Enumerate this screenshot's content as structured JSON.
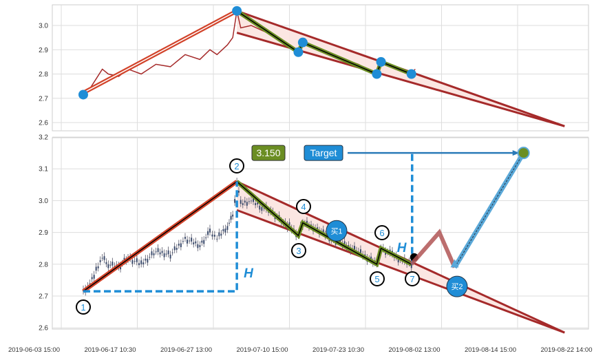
{
  "chart_data": [
    {
      "type": "line",
      "panel": "top",
      "ylim": [
        2.58,
        3.085
      ],
      "yticks": [
        "2.6",
        "2.7",
        "2.8",
        "2.9",
        "3.0"
      ],
      "grid": true,
      "price_color": "#a52a2a"
    },
    {
      "type": "candlestick",
      "panel": "bottom",
      "ylim": [
        2.57,
        3.2
      ],
      "yticks": [
        "2.6",
        "2.7",
        "2.8",
        "2.9",
        "3.0",
        "3.1",
        "3.2"
      ],
      "grid": true
    }
  ],
  "x_ticks": [
    "2019-06-03 15:00",
    "2019-06-17 10:30",
    "2019-06-27 13:00",
    "2019-07-10 15:00",
    "2019-07-23 10:30",
    "2019-08-02 13:00",
    "2019-08-14 15:00",
    "2019-08-22 14:00"
  ],
  "price_series": [
    [
      "2019-06-07 15:00",
      2.715
    ],
    [
      "2019-06-08 20:00",
      2.74
    ],
    [
      "2019-06-09 23:00",
      2.78
    ],
    [
      "2019-06-11 02:00",
      2.82
    ],
    [
      "2019-06-12 04:00",
      2.8
    ],
    [
      "2019-06-14 01:00",
      2.79
    ],
    [
      "2019-06-15 18:00",
      2.82
    ],
    [
      "2019-06-17 23:00",
      2.8
    ],
    [
      "2019-06-19 22:00",
      2.84
    ],
    [
      "2019-06-21 20:00",
      2.83
    ],
    [
      "2019-06-23 19:00",
      2.88
    ],
    [
      "2019-06-25 18:00",
      2.86
    ],
    [
      "2019-06-27 02:00",
      2.9
    ],
    [
      "2019-06-28 04:00",
      2.88
    ],
    [
      "2019-06-29 23:00",
      2.92
    ],
    [
      "2019-06-30 21:00",
      2.95
    ],
    [
      "2019-07-01 14:00",
      3.06
    ],
    [
      "2019-07-02 06:00",
      2.99
    ],
    [
      "2019-07-04 01:00",
      3.0
    ],
    [
      "2019-07-05 21:00",
      2.98
    ],
    [
      "2019-07-07 19:00",
      2.96
    ],
    [
      "2019-07-09 14:00",
      2.93
    ],
    [
      "2019-07-10 15:00",
      2.92
    ],
    [
      "2019-07-12 03:00",
      2.89
    ],
    [
      "2019-07-12 21:00",
      2.93
    ],
    [
      "2019-07-15 08:00",
      2.91
    ],
    [
      "2019-07-17 16:00",
      2.88
    ],
    [
      "2019-07-19 22:00",
      2.86
    ],
    [
      "2019-07-22 06:00",
      2.84
    ],
    [
      "2019-07-23 16:00",
      2.82
    ],
    [
      "2019-07-24 22:30",
      2.8
    ],
    [
      "2019-07-25 12:00",
      2.85
    ],
    [
      "2019-07-27 00:00",
      2.83
    ],
    [
      "2019-07-28 08:00",
      2.81
    ],
    [
      "2019-07-29 13:00",
      2.8
    ],
    [
      "2019-07-30 01:00",
      2.82
    ]
  ],
  "pivots": [
    {
      "label": "1",
      "date": "2019-06-07 15:00",
      "price": 2.715
    },
    {
      "label": "2",
      "date": "2019-07-01 14:00",
      "price": 3.06
    },
    {
      "label": "3",
      "date": "2019-07-12 03:00",
      "price": 2.89
    },
    {
      "label": "4",
      "date": "2019-07-12 21:00",
      "price": 2.93
    },
    {
      "label": "5",
      "date": "2019-07-24 22:30",
      "price": 2.8
    },
    {
      "label": "6",
      "date": "2019-07-25 12:00",
      "price": 2.85
    },
    {
      "label": "7",
      "date": "2019-07-29 13:00",
      "price": 2.8
    }
  ],
  "channel": {
    "upper": [
      [
        "2019-07-01 14:00",
        3.06
      ],
      [
        "2019-08-19 13:00",
        2.585
      ]
    ],
    "lower": [
      [
        "2019-07-01 14:00",
        2.97
      ],
      [
        "2019-08-19 13:00",
        2.585
      ]
    ],
    "fill": "#fbe3df",
    "line": "#a52a2a"
  },
  "projection": [
    [
      "2019-07-29 13:00",
      2.8
    ],
    [
      "2019-08-02 06:00",
      2.9
    ],
    [
      "2019-08-04 15:00",
      2.79
    ]
  ],
  "target": {
    "date": "2019-08-15 06:00",
    "price": 3.15,
    "label": "Target",
    "value_label": "3.150"
  },
  "h_label": "H",
  "buy1_label": "买1",
  "buy2_label": "买2",
  "colors": {
    "accent": "#1f8dd6",
    "olive": "#6b8e23",
    "red": "#d2432a",
    "brown": "#a52a2a"
  }
}
